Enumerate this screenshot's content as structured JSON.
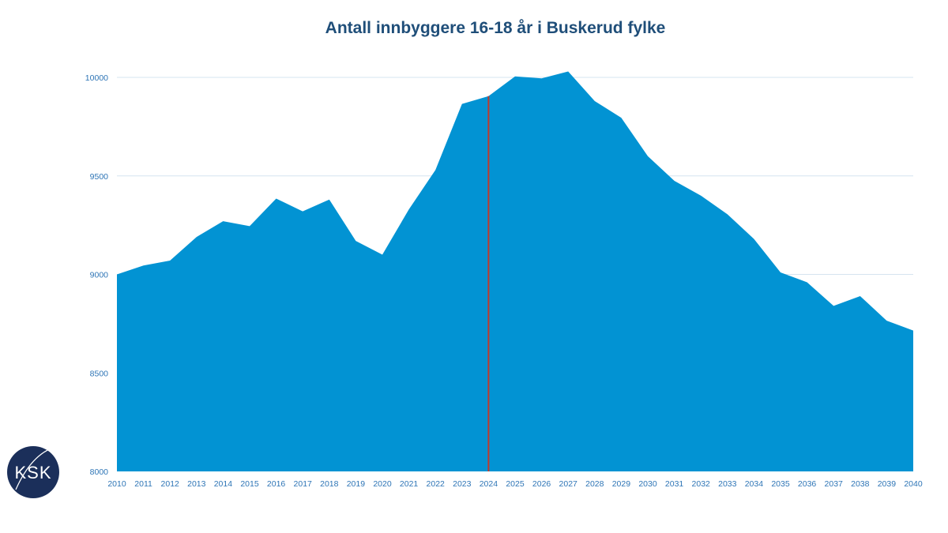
{
  "chart_data": {
    "type": "area",
    "title": "Antall innbyggere 16-18 år i Buskerud fylke",
    "xlabel": "",
    "ylabel": "",
    "x": [
      "2010",
      "2011",
      "2012",
      "2013",
      "2014",
      "2015",
      "2016",
      "2017",
      "2018",
      "2019",
      "2020",
      "2021",
      "2022",
      "2023",
      "2024",
      "2025",
      "2026",
      "2027",
      "2028",
      "2029",
      "2030",
      "2031",
      "2032",
      "2033",
      "2034",
      "2035",
      "2036",
      "2037",
      "2038",
      "2039",
      "2040"
    ],
    "series": [
      {
        "values": [
          9000,
          9045,
          9070,
          9190,
          9270,
          9245,
          9385,
          9320,
          9380,
          9170,
          9100,
          9330,
          9530,
          9865,
          9905,
          10005,
          9995,
          10030,
          9880,
          9795,
          9600,
          9475,
          9400,
          9305,
          9180,
          9010,
          8960,
          8840,
          8890,
          8765,
          8715
        ]
      }
    ],
    "ylim": [
      8000,
      10000
    ],
    "yticks": [
      "8000",
      "8500",
      "9000",
      "9500",
      "10000"
    ],
    "grid": "horizontal",
    "legend": "none",
    "marker_line": {
      "x": "2024",
      "color": "#c0392b"
    },
    "colors": {
      "area": "#0293d3",
      "title": "#1f4e79",
      "ticks": "#2e75b6",
      "grid": "#d6e4f0"
    }
  },
  "logo": {
    "text": "KSK",
    "icon": "ksk-logo-icon",
    "background": "#1b2f5a"
  }
}
